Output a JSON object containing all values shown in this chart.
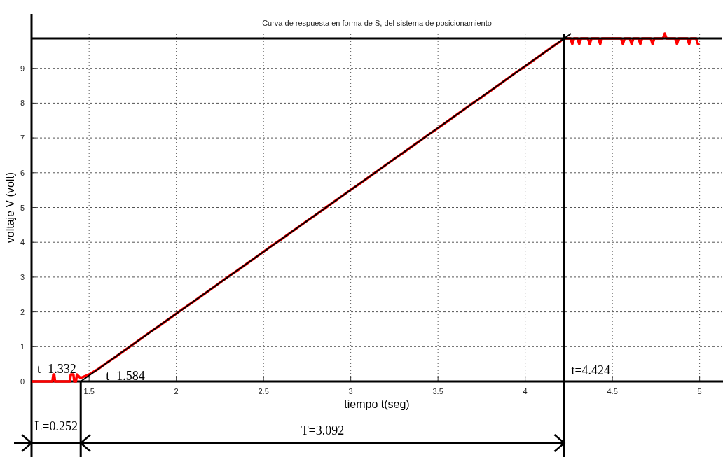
{
  "chart_data": {
    "type": "line",
    "title": "Curva de respuesta en forma de S, del sistema de posicionamiento",
    "xlabel": "tiempo t(seg)",
    "ylabel": "voltaje V (volt)",
    "xlim": [
      1.17,
      5.13
    ],
    "xticks": [
      1.5,
      2,
      2.5,
      3,
      3.5,
      4,
      4.5,
      5
    ],
    "ylim": [
      0,
      10
    ],
    "yticks": [
      0,
      1,
      2,
      3,
      4,
      5,
      6,
      7,
      8,
      9
    ],
    "grid": true,
    "line_style": "solid",
    "series": [
      {
        "color": "#ff0000",
        "x": [
          1.17,
          1.29,
          1.295,
          1.3,
          1.305,
          1.39,
          1.395,
          1.41,
          1.415,
          1.425,
          1.43,
          1.45,
          1.5,
          1.55,
          1.6,
          1.65,
          1.7,
          1.75,
          1.8,
          1.85,
          1.9,
          1.95,
          2.0,
          2.05,
          2.1,
          2.15,
          2.2,
          2.25,
          2.3,
          2.35,
          2.4,
          2.45,
          2.5,
          2.55,
          2.6,
          2.65,
          2.7,
          2.75,
          2.8,
          2.85,
          2.9,
          2.95,
          3.0,
          3.05,
          3.1,
          3.15,
          3.2,
          3.25,
          3.3,
          3.35,
          3.4,
          3.45,
          3.5,
          3.55,
          3.6,
          3.65,
          3.7,
          3.75,
          3.8,
          3.85,
          3.9,
          3.95,
          4.0,
          4.05,
          4.1,
          4.15,
          4.2,
          4.22,
          4.26,
          4.27,
          4.28,
          4.3,
          4.31,
          4.32,
          4.36,
          4.37,
          4.38,
          4.42,
          4.43,
          4.44,
          4.55,
          4.56,
          4.57,
          4.6,
          4.61,
          4.62,
          4.65,
          4.66,
          4.67,
          4.72,
          4.73,
          4.74,
          4.79,
          4.8,
          4.81,
          4.86,
          4.87,
          4.88,
          4.93,
          4.94,
          4.95,
          4.98,
          4.99,
          5.0
        ],
        "values": [
          0,
          0,
          0.2,
          0.2,
          0,
          0,
          0.2,
          0.2,
          0,
          0,
          0.2,
          0.1,
          0.2,
          0.35,
          0.53,
          0.7,
          0.88,
          1.06,
          1.24,
          1.42,
          1.59,
          1.77,
          1.95,
          2.13,
          2.3,
          2.48,
          2.66,
          2.84,
          3.02,
          3.19,
          3.37,
          3.55,
          3.73,
          3.91,
          4.08,
          4.26,
          4.44,
          4.62,
          4.79,
          4.97,
          5.15,
          5.33,
          5.51,
          5.68,
          5.86,
          6.04,
          6.22,
          6.4,
          6.57,
          6.75,
          6.93,
          7.11,
          7.28,
          7.46,
          7.64,
          7.82,
          8.0,
          8.17,
          8.35,
          8.53,
          8.71,
          8.89,
          9.06,
          9.24,
          9.42,
          9.6,
          9.77,
          9.86,
          9.86,
          9.7,
          9.86,
          9.86,
          9.7,
          9.86,
          9.86,
          9.7,
          9.86,
          9.86,
          9.7,
          9.86,
          9.86,
          9.7,
          9.86,
          9.86,
          9.7,
          9.86,
          9.86,
          9.7,
          9.86,
          9.86,
          9.7,
          9.86,
          9.86,
          10.0,
          9.86,
          9.86,
          9.7,
          9.86,
          9.86,
          9.7,
          9.86,
          9.86,
          9.7,
          9.7
        ]
      },
      {
        "color": "#000000",
        "x": [
          1.452,
          4.263
        ],
        "values": [
          0,
          10
        ]
      }
    ],
    "ref_lines": [
      {
        "axis": "y",
        "value": 9.86,
        "color": "#000000"
      },
      {
        "axis": "x",
        "value": 4.224,
        "color": "#000000"
      }
    ],
    "annotations": [
      "t=1.332",
      "t=1.584",
      "t=4.424",
      "L=0.252",
      "T=3.092"
    ]
  }
}
